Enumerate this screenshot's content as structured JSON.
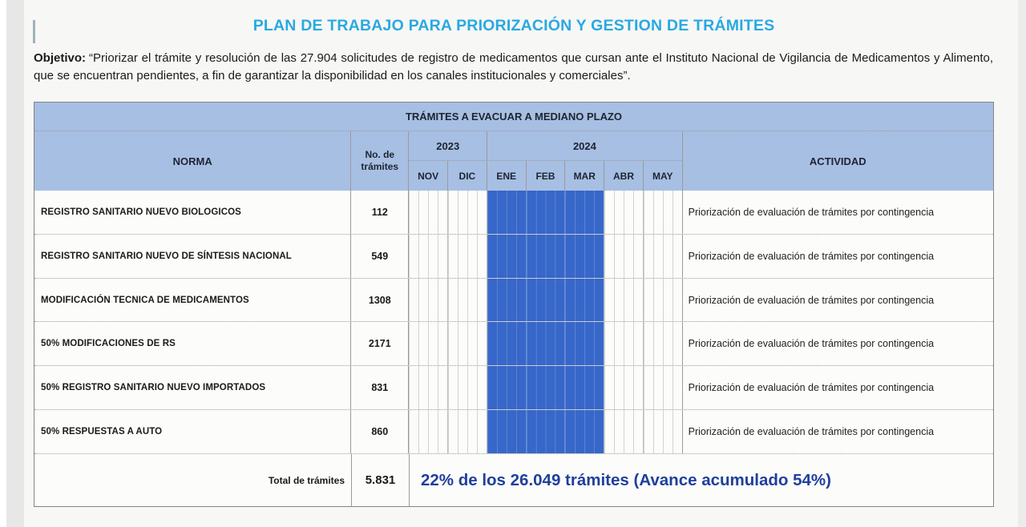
{
  "page": {
    "title": "PLAN DE TRABAJO PARA PRIORIZACIÓN Y GESTION DE TRÁMITES",
    "objective_label": "Objetivo:",
    "objective_text": "“Priorizar el trámite y resolución de las 27.904 solicitudes de registro de medicamentos que cursan ante el Instituto Nacional de Vigilancia de Medicamentos y Alimento, que se encuentran pendientes, a fin de garantizar la disponibilidad en los canales institucionales y comerciales”."
  },
  "table": {
    "banner": "TRÁMITES A EVACUAR A MEDIANO PLAZO",
    "columns": {
      "norma": "NORMA",
      "tramites": "No. de trámites",
      "actividad": "ACTIVIDAD"
    },
    "years": [
      {
        "label": "2023",
        "months": [
          "NOV",
          "DIC"
        ]
      },
      {
        "label": "2024",
        "months": [
          "ENE",
          "FEB",
          "MAR",
          "ABR",
          "MAY"
        ]
      }
    ],
    "months": [
      "NOV",
      "DIC",
      "ENE",
      "FEB",
      "MAR",
      "ABR",
      "MAY"
    ],
    "rows": [
      {
        "norma": "REGISTRO SANITARIO NUEVO BIOLOGICOS",
        "tramites": "112",
        "bar": [
          "ENE",
          "FEB",
          "MAR"
        ],
        "actividad": "Priorización de evaluación de trámites por contingencia"
      },
      {
        "norma": "REGISTRO SANITARIO NUEVO DE SÍNTESIS NACIONAL",
        "tramites": "549",
        "bar": [
          "ENE",
          "FEB",
          "MAR"
        ],
        "actividad": "Priorización de evaluación de trámites por contingencia"
      },
      {
        "norma": "MODIFICACIÓN TECNICA DE MEDICAMENTOS",
        "tramites": "1308",
        "bar": [
          "ENE",
          "FEB",
          "MAR"
        ],
        "actividad": "Priorización de evaluación de trámites por contingencia"
      },
      {
        "norma": "50% MODIFICACIONES DE RS",
        "tramites": "2171",
        "bar": [
          "ENE",
          "FEB",
          "MAR"
        ],
        "actividad": "Priorización de evaluación de trámites por contingencia"
      },
      {
        "norma": "50% REGISTRO SANITARIO NUEVO IMPORTADOS",
        "tramites": "831",
        "bar": [
          "ENE",
          "FEB",
          "MAR"
        ],
        "actividad": "Priorización de evaluación de trámites por contingencia"
      },
      {
        "norma": "50% RESPUESTAS A AUTO",
        "tramites": "860",
        "bar": [
          "ENE",
          "FEB",
          "MAR"
        ],
        "actividad": "Priorización de evaluación de trámites por contingencia"
      }
    ],
    "footer": {
      "total_label": "Total de trámites",
      "total_value": "5.831",
      "progress": "22% de los 26.049 trámites (Avance acumulado 54%)"
    }
  },
  "colors": {
    "header_bg": "#A7BFE3",
    "gantt_bar": "#3767C9",
    "title_text": "#29A9E1",
    "progress_text": "#1F3F9C"
  }
}
